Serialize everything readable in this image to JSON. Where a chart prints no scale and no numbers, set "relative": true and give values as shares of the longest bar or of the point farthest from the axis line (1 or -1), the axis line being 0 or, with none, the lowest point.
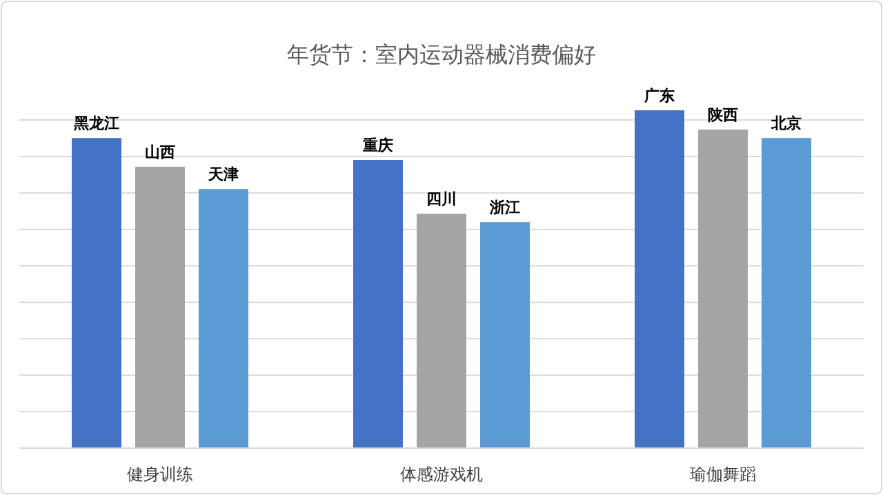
{
  "chart_data": {
    "type": "bar",
    "title": "年货节：室内运动器械消费偏好",
    "categories": [
      "健身训练",
      "体感游戏机",
      "瑜伽舞蹈"
    ],
    "relative": true,
    "grid": "y",
    "series": [
      {
        "color": "#4472c4",
        "values": [
          0.918,
          0.853,
          1
        ]
      },
      {
        "color": "#a5a5a5",
        "values": [
          0.833,
          0.694,
          0.943
        ]
      },
      {
        "color": "#5b9bd5",
        "values": [
          0.767,
          0.669,
          0.918
        ]
      }
    ],
    "annotations": [
      "黑龙江",
      "山西",
      "天津",
      "重庆",
      "四川",
      "浙江",
      "广东",
      "陕西",
      "北京"
    ]
  }
}
